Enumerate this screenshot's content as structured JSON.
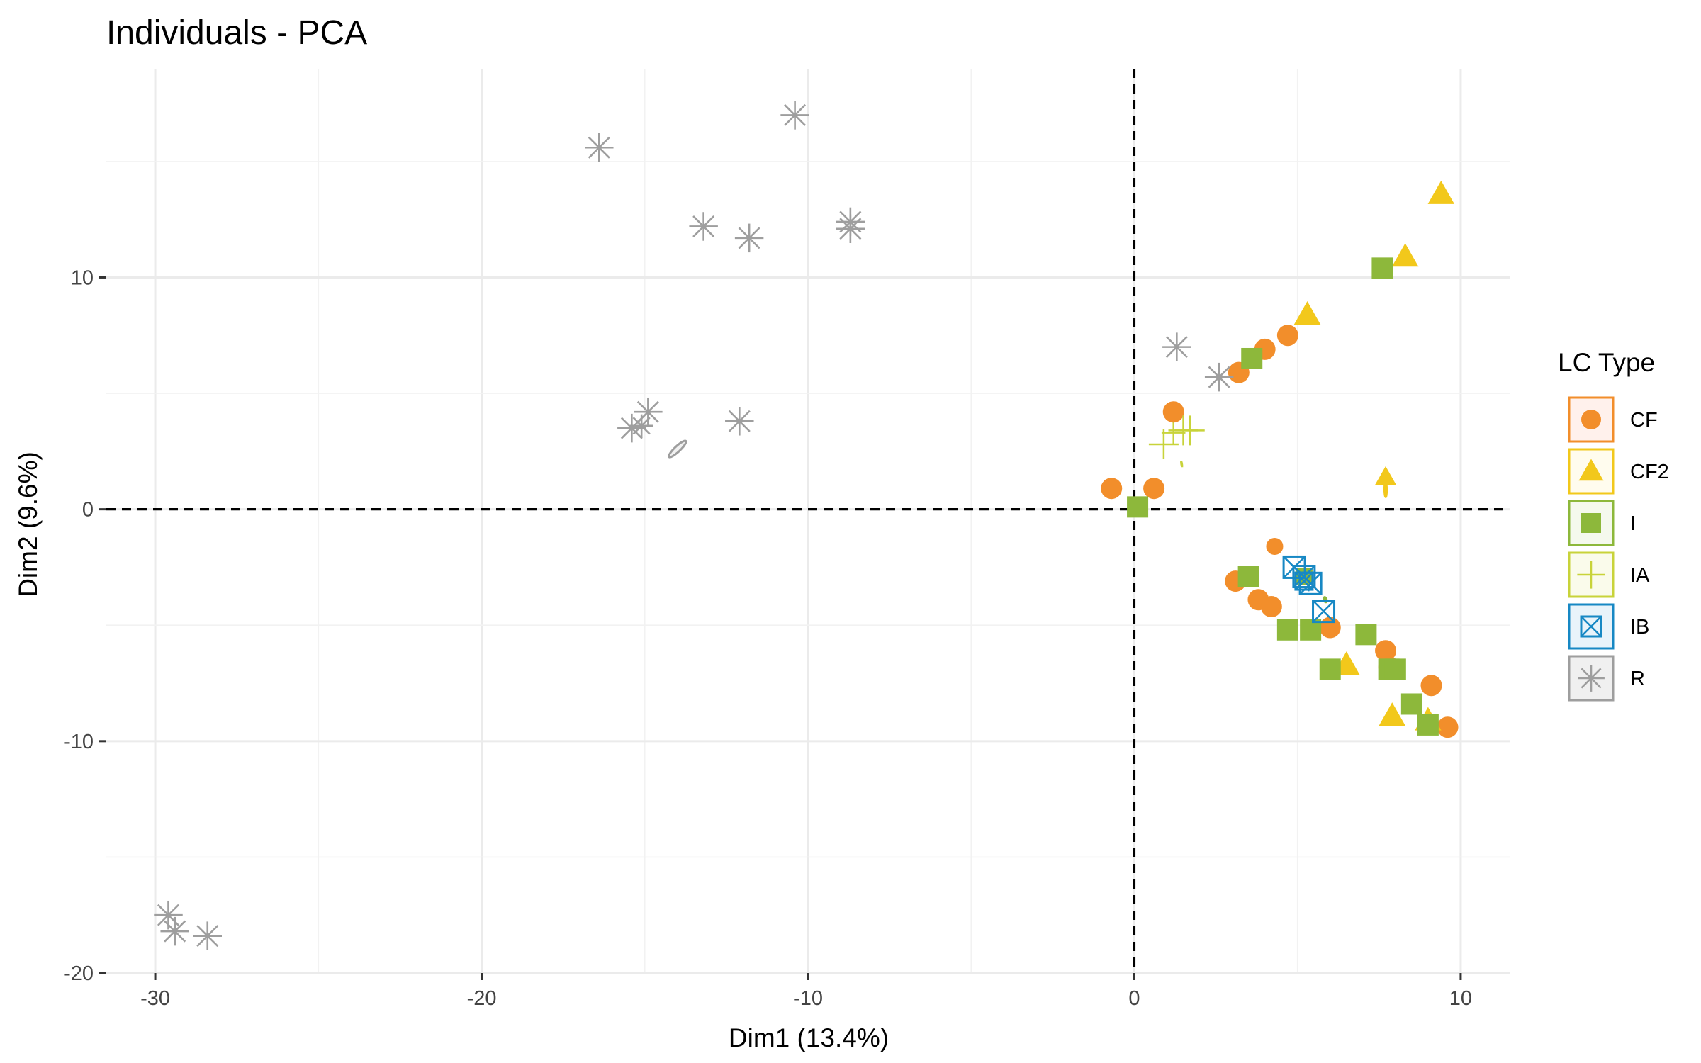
{
  "chart_data": {
    "type": "scatter",
    "title": "Individuals - PCA",
    "xlabel": "Dim1 (13.4%)",
    "ylabel": "Dim2 (9.6%)",
    "xlim": [
      -31.5,
      11.5
    ],
    "ylim": [
      -20,
      19
    ],
    "x_ticks": [
      -30,
      -20,
      -10,
      0,
      10
    ],
    "y_ticks": [
      -20,
      -10,
      0,
      10
    ],
    "x_tick_labels": [
      "-30",
      "-20",
      "-10",
      "0",
      "10"
    ],
    "y_tick_labels": [
      "-20",
      "-10",
      "0",
      "10"
    ],
    "grid": true,
    "reference_lines": {
      "x": 0,
      "y": 0,
      "style": "dashed"
    },
    "legend_title": "LC Type",
    "legend_position": "right",
    "series": [
      {
        "name": "CF",
        "marker": "circle",
        "color": "#F28E2B",
        "points": [
          [
            -0.7,
            0.9
          ],
          [
            0.6,
            0.9
          ],
          [
            1.2,
            4.2
          ],
          [
            3.2,
            5.9
          ],
          [
            4.0,
            6.9
          ],
          [
            4.7,
            7.5
          ],
          [
            3.1,
            -3.1
          ],
          [
            3.8,
            -3.9
          ],
          [
            4.2,
            -4.2
          ],
          [
            6.0,
            -5.1
          ],
          [
            7.7,
            -6.1
          ],
          [
            7.8,
            -6.8
          ],
          [
            9.1,
            -7.6
          ],
          [
            9.6,
            -9.4
          ]
        ],
        "mean": [
          4.3,
          -1.6
        ]
      },
      {
        "name": "CF2",
        "marker": "triangle",
        "color": "#F2C81B",
        "points": [
          [
            5.3,
            8.4
          ],
          [
            8.3,
            10.9
          ],
          [
            9.4,
            13.6
          ],
          [
            6.5,
            -6.7
          ],
          [
            7.9,
            -8.9
          ],
          [
            9.0,
            -9.1
          ]
        ],
        "mean": [
          7.7,
          1.4
        ]
      },
      {
        "name": "I",
        "marker": "square",
        "color": "#8DB83B",
        "points": [
          [
            0.1,
            0.1
          ],
          [
            3.6,
            6.5
          ],
          [
            7.6,
            10.4
          ],
          [
            3.5,
            -2.9
          ],
          [
            4.7,
            -5.2
          ],
          [
            5.4,
            -5.2
          ],
          [
            6.0,
            -6.9
          ],
          [
            7.1,
            -5.4
          ],
          [
            7.8,
            -6.9
          ],
          [
            8.0,
            -6.9
          ],
          [
            8.5,
            -8.4
          ],
          [
            9.0,
            -9.3
          ]
        ],
        "mean": [
          5.2,
          -2.9
        ]
      },
      {
        "name": "IA",
        "marker": "plus",
        "color": "#C8D33A",
        "points": [
          [
            0.9,
            2.8
          ],
          [
            1.5,
            3.4
          ],
          [
            1.7,
            3.4
          ]
        ],
        "mean": [
          1.2,
          3.3
        ]
      },
      {
        "name": "IB",
        "marker": "boxcross",
        "color": "#1788C4",
        "points": [
          [
            4.9,
            -2.5
          ],
          [
            5.2,
            -2.9
          ],
          [
            5.4,
            -3.2
          ],
          [
            5.8,
            -4.4
          ]
        ],
        "mean": [
          5.2,
          -3.1
        ]
      },
      {
        "name": "R",
        "marker": "asterisk",
        "color": "#9E9E9E",
        "points": [
          [
            -16.4,
            15.6
          ],
          [
            -10.4,
            17.0
          ],
          [
            -13.2,
            12.2
          ],
          [
            -11.8,
            11.7
          ],
          [
            -8.7,
            12.4
          ],
          [
            -8.7,
            12.1
          ],
          [
            -15.4,
            3.5
          ],
          [
            -14.9,
            4.2
          ],
          [
            -12.1,
            3.8
          ],
          [
            1.3,
            7.0
          ],
          [
            2.6,
            5.7
          ],
          [
            -29.6,
            -17.5
          ],
          [
            -29.4,
            -18.2
          ],
          [
            -28.4,
            -18.4
          ]
        ],
        "mean": [
          -15.1,
          3.6
        ]
      }
    ],
    "ellipses": [
      {
        "name": "R",
        "cx": -14.0,
        "cy": 2.6,
        "rx": 16.3,
        "ry": 3.9,
        "angle_deg": 43.2,
        "color": "#9E9E9E",
        "fill": "#F0F0F0"
      },
      {
        "name": "CF",
        "cx": 4.4,
        "cy": -1.7,
        "rx": 4.4,
        "ry": 1.7,
        "angle_deg": -54.8,
        "color": "#F28E2B",
        "fill": "#FFF1EC"
      },
      {
        "name": "CF2",
        "cx": 7.7,
        "cy": 0.85,
        "rx": 10.5,
        "ry": 1.55,
        "angle_deg": 90.5,
        "color": "#F2C81B",
        "fill": "#FFFCEE"
      },
      {
        "name": "I",
        "cx": 5.85,
        "cy": -3.9,
        "rx": 3.6,
        "ry": 1.8,
        "angle_deg": -72.6,
        "color": "#8DB83B",
        "fill": "#F5F9ED"
      },
      {
        "name": "IA",
        "cx": 1.45,
        "cy": 1.95,
        "rx": 3.05,
        "ry": 0.32,
        "angle_deg": -80.6,
        "color": "#C8D33A",
        "fill": "#FAFBEB"
      },
      {
        "name": "IB",
        "cx": 5.35,
        "cy": -3.45,
        "rx": 1.6,
        "ry": 0.08,
        "angle_deg": -64.4,
        "color": "#1788C4",
        "fill": "#E8F3FA"
      }
    ]
  }
}
